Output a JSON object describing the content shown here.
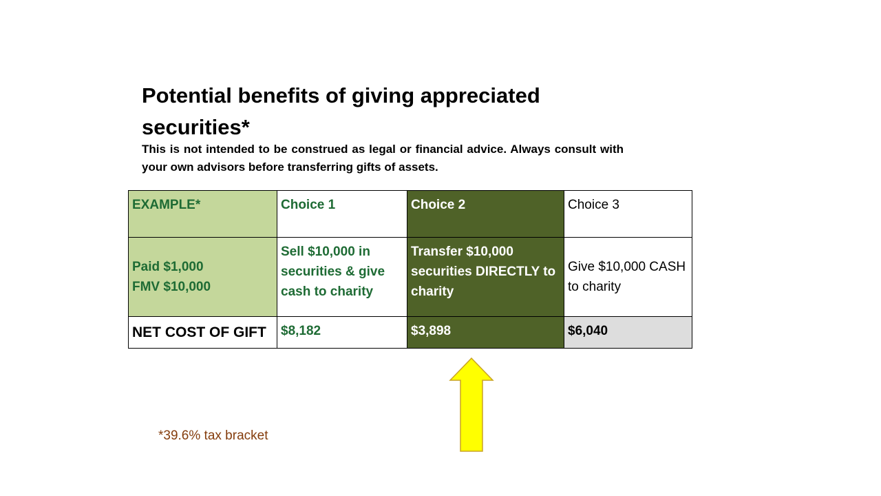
{
  "slide": {
    "title": "Potential benefits of giving appreciated securities*",
    "disclaimer": "This is not intended to be construed as legal or financial advice. Always consult with your own advisors before transferring gifts of assets.",
    "footnote": "*39.6% tax bracket"
  },
  "table": {
    "header": {
      "example": "EXAMPLE*",
      "choice1": "Choice 1",
      "choice2": "Choice 2",
      "choice3": "Choice 3"
    },
    "scenario": {
      "example_line1": "Paid $1,000",
      "example_line2": "FMV $10,000",
      "choice1": "Sell $10,000 in securities & give cash to charity",
      "choice2": "Transfer $10,000 securities DIRECTLY to charity",
      "choice3": "Give $10,000 CASH to charity"
    },
    "net_cost": {
      "label": "NET COST OF GIFT",
      "choice1": "$8,182",
      "choice2": "$3,898",
      "choice3": "$6,040"
    }
  },
  "colors": {
    "light_green": "#c4d79b",
    "dark_green": "#4f6228",
    "text_green": "#1e6b34",
    "gray": "#dddddd",
    "arrow_yellow": "#ffff00",
    "footnote_brown": "#843c0c"
  },
  "icons": {
    "arrow": "up-arrow-icon"
  }
}
